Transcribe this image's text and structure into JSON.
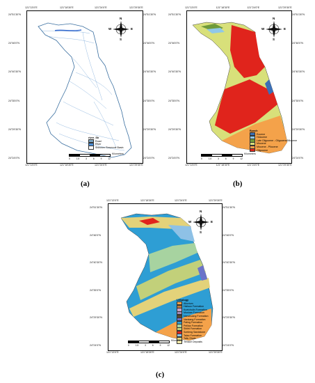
{
  "panels": {
    "a": {
      "caption": "(a)",
      "top_ticks": [
        "121°13'0\"E",
        "121°18'30\"E",
        "121°24'0\"E",
        "121°29'30\"E"
      ],
      "bottom_ticks": [
        "121°13'0\"E",
        "121°18'30\"E",
        "121°24'0\"E",
        "121°29'30\"E"
      ],
      "left_ticks": [
        "24°51'30\"N",
        "24°46'0\"N",
        "24°40'30\"N",
        "24°35'0\"N",
        "24°29'30\"N",
        "24°24'0\"N"
      ],
      "right_ticks": [
        "24°51'30\"N",
        "24°46'0\"N",
        "24°40'30\"N",
        "24°35'0\"N",
        "24°29'30\"N",
        "24°24'0\"N"
      ],
      "legend_title": "river_Sh",
      "legend": [
        {
          "label": "Road",
          "color": "#7da7c4"
        },
        {
          "label": "River",
          "color": "#4c8fd8"
        },
        {
          "label": "Shihmen Reservoir Basin",
          "color": "#ffffff"
        }
      ],
      "scale_unit": "Kilometers",
      "scale_nums": [
        "0",
        "1.5",
        "3",
        "6",
        "9",
        "12"
      ]
    },
    "b": {
      "caption": "(b)",
      "top_ticks": [
        "121°13'0\"E",
        "121°18'30\"E",
        "121°24'0\"E",
        "121°29'30\"E"
      ],
      "bottom_ticks": [
        "121°13'0\"E",
        "121°18'30\"E",
        "121°24'0\"E",
        "121°29'30\"E"
      ],
      "left_ticks": [
        "24°51'30\"N",
        "24°46'0\"N",
        "24°40'30\"N",
        "24°35'0\"N",
        "24°29'30\"N",
        "24°24'0\"N"
      ],
      "right_ticks": [
        "24°51'30\"N",
        "24°46'0\"N",
        "24°40'30\"N",
        "24°35'0\"N",
        "24°29'30\"N",
        "24°24'0\"N"
      ],
      "legend_title": "Epoch",
      "legend": [
        {
          "label": "Eocene",
          "color": "#3b6fb6"
        },
        {
          "label": "Holocene",
          "color": "#8fc8e8"
        },
        {
          "label": "Late Oligocene - Oligocene/Miocene",
          "color": "#6e9a3a"
        },
        {
          "label": "Miocene",
          "color": "#d8e07a"
        },
        {
          "label": "Miocene - Pliocene",
          "color": "#f4a24a"
        },
        {
          "label": "Oligocene",
          "color": "#e0241c"
        }
      ],
      "scale_unit": "Kilometers",
      "scale_nums": [
        "0",
        "1.5",
        "3",
        "6",
        "9",
        "12"
      ]
    },
    "c": {
      "caption": "(c)",
      "top_ticks": [
        "121°13'0\"E",
        "121°18'30\"E",
        "121°24'0\"E",
        "121°29'30\"E"
      ],
      "bottom_ticks": [
        "121°13'0\"E",
        "121°18'30\"E",
        "121°24'0\"E",
        "121°29'30\"E"
      ],
      "left_ticks": [
        "24°51'30\"N",
        "24°46'0\"N",
        "24°40'30\"N",
        "24°35'0\"N",
        "24°29'30\"N",
        "24°24'0\"N"
      ],
      "right_ticks": [
        "24°51'30\"N",
        "24°46'0\"N",
        "24°40'30\"N",
        "24°35'0\"N",
        "24°29'30\"N",
        "24°24'0\"N"
      ],
      "legend_title": "Lithology",
      "legend": [
        {
          "label": "Alluvium",
          "color": "#f4a24a"
        },
        {
          "label": "Hsitsun Formation",
          "color": "#c0793c"
        },
        {
          "label": "Kueichulin Formation",
          "color": "#c9a0c8"
        },
        {
          "label": "Mushan Formation",
          "color": "#a58bb8"
        },
        {
          "label": "Nanchuang Formation",
          "color": "#5c4a2c"
        },
        {
          "label": "Nankang Formation",
          "color": "#6b73c9"
        },
        {
          "label": "Paling Formation",
          "color": "#2e9ed4"
        },
        {
          "label": "Peiliao Formation",
          "color": "#a7d3a0"
        },
        {
          "label": "Shihti Formation",
          "color": "#c2d07a"
        },
        {
          "label": "Szeleng Sandstone",
          "color": "#e0241c"
        },
        {
          "label": "Talao Formation",
          "color": "#8ec1e6"
        },
        {
          "label": "Taliu Shale",
          "color": "#e3d27a"
        },
        {
          "label": "Terrace Deposits",
          "color": "#f3e9a8"
        }
      ],
      "scale_unit": "Kilometers",
      "scale_nums": [
        "0",
        "1.5",
        "3",
        "6",
        "9",
        "12"
      ]
    }
  },
  "compass_labels": {
    "n": "N",
    "s": "S",
    "e": "E",
    "w": "W"
  }
}
